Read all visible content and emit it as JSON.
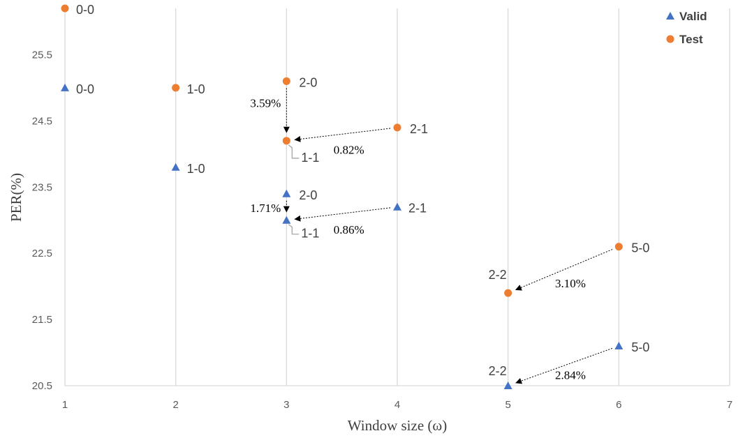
{
  "chart_data": {
    "type": "scatter",
    "xlabel": "Window size (ω)",
    "ylabel": "PER(%)",
    "xlim": [
      1,
      7
    ],
    "ylim": [
      20.5,
      26.2
    ],
    "x_ticks": [
      "1",
      "2",
      "3",
      "4",
      "5",
      "6",
      "7"
    ],
    "y_ticks": [
      "20.5",
      "21.5",
      "22.5",
      "23.5",
      "24.5",
      "25.5"
    ],
    "grid": "vertical",
    "legend_position": "top-right",
    "series": [
      {
        "name": "Valid",
        "marker": "triangle",
        "color": "#4472c4",
        "points": [
          {
            "x": 1,
            "y": 25.0,
            "label": "0-0"
          },
          {
            "x": 2,
            "y": 23.8,
            "label": "1-0"
          },
          {
            "x": 3,
            "y": 23.4,
            "label": "2-0"
          },
          {
            "x": 3,
            "y": 23.0,
            "label": "1-1"
          },
          {
            "x": 4,
            "y": 23.2,
            "label": "2-1"
          },
          {
            "x": 5,
            "y": 20.5,
            "label": "2-2"
          },
          {
            "x": 6,
            "y": 21.1,
            "label": "5-0"
          }
        ]
      },
      {
        "name": "Test",
        "marker": "circle",
        "color": "#ed7d31",
        "points": [
          {
            "x": 1,
            "y": 26.2,
            "label": "0-0"
          },
          {
            "x": 2,
            "y": 25.0,
            "label": "1-0"
          },
          {
            "x": 3,
            "y": 25.1,
            "label": "2-0"
          },
          {
            "x": 3,
            "y": 24.2,
            "label": "1-1"
          },
          {
            "x": 4,
            "y": 24.4,
            "label": "2-1"
          },
          {
            "x": 5,
            "y": 21.9,
            "label": "2-2"
          },
          {
            "x": 6,
            "y": 22.6,
            "label": "5-0"
          }
        ]
      }
    ],
    "annotations": [
      {
        "from": [
          3,
          25.1
        ],
        "to": [
          3,
          24.2
        ],
        "label": "3.59%"
      },
      {
        "from": [
          4,
          24.4
        ],
        "to": [
          3,
          24.2
        ],
        "label": "0.82%"
      },
      {
        "from": [
          3,
          23.4
        ],
        "to": [
          3,
          23.0
        ],
        "label": "1.71%"
      },
      {
        "from": [
          4,
          23.2
        ],
        "to": [
          3,
          23.0
        ],
        "label": "0.86%"
      },
      {
        "from": [
          6,
          22.6
        ],
        "to": [
          5,
          21.9
        ],
        "label": "3.10%"
      },
      {
        "from": [
          6,
          21.1
        ],
        "to": [
          5,
          20.5
        ],
        "label": "2.84%"
      }
    ]
  }
}
